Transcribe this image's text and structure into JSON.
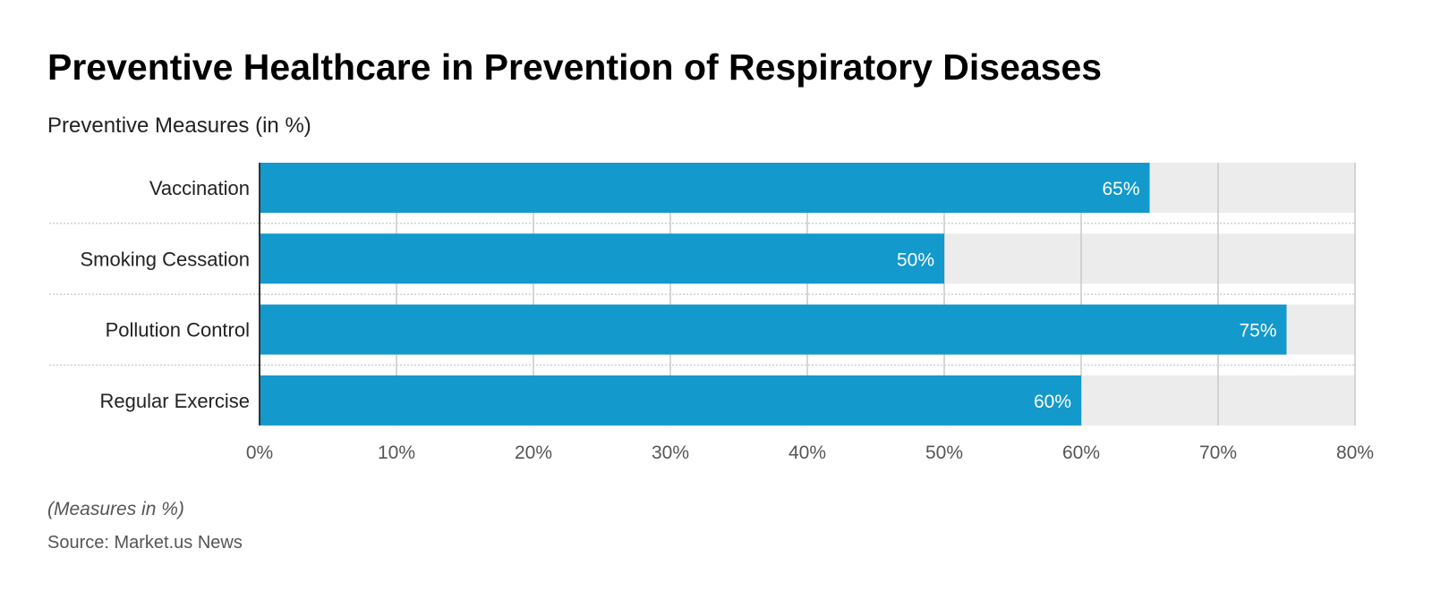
{
  "title": "Preventive Healthcare in Prevention of Respiratory Diseases",
  "subtitle": "Preventive Measures (in %)",
  "note": "(Measures in %)",
  "source": "Source: Market.us News",
  "chart_data": {
    "type": "bar",
    "orientation": "horizontal",
    "title": "Preventive Healthcare in Prevention of Respiratory Diseases",
    "subtitle": "Preventive Measures (in %)",
    "categories": [
      "Vaccination",
      "Smoking Cessation",
      "Pollution Control",
      "Regular Exercise"
    ],
    "values": [
      65,
      50,
      75,
      60
    ],
    "data_labels": [
      "65%",
      "50%",
      "75%",
      "60%"
    ],
    "xlim": [
      0,
      80
    ],
    "ticks": [
      0,
      10,
      20,
      30,
      40,
      50,
      60,
      70,
      80
    ],
    "tick_labels": [
      "0%",
      "10%",
      "20%",
      "30%",
      "40%",
      "50%",
      "60%",
      "70%",
      "80%"
    ],
    "grid": true,
    "bar_color": "#1399cb",
    "track_color": "#ececec"
  }
}
